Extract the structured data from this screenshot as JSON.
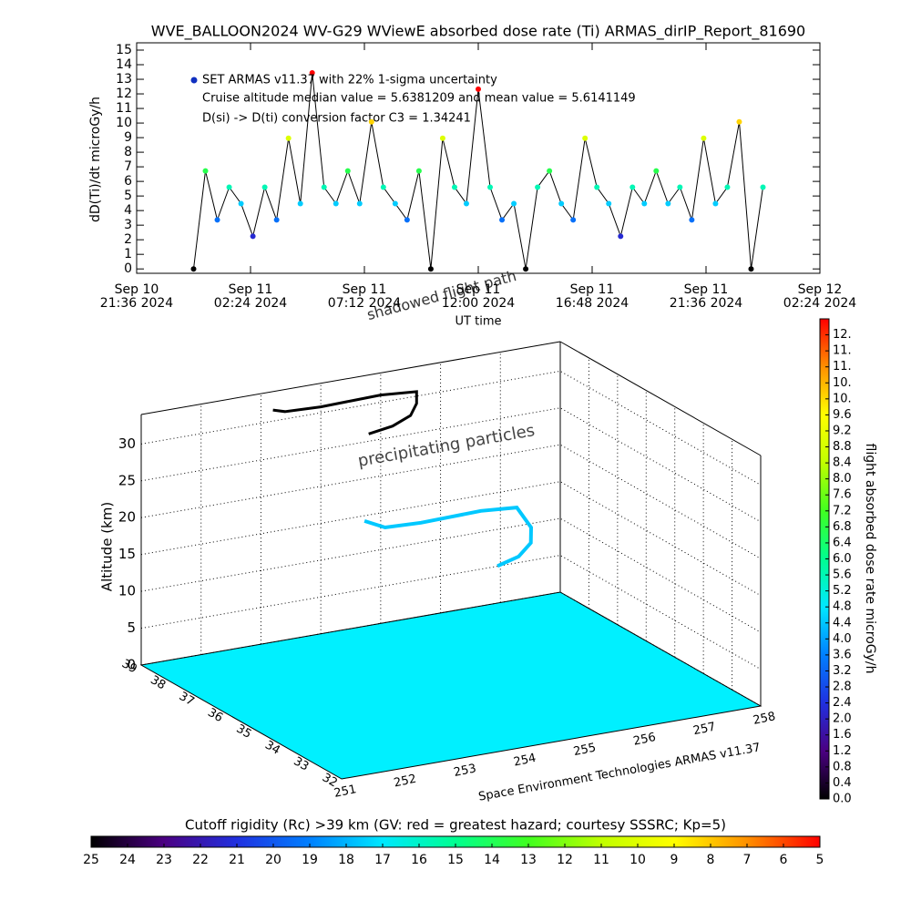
{
  "chart_data": [
    {
      "type": "line",
      "title": "WVE_BALLOON2024 WV-G29 WViewE absorbed dose rate (Ti) ARMAS_dirIP_Report_81690",
      "ylabel": "dD(Ti)/dt microGy/h",
      "xlabel": "UT time",
      "annotations": [
        "Cruise altitude median value = 5.6381209 and mean value = 5.6141149",
        "D(si) -> D(ti) conversion factor C3 = 1.34241"
      ],
      "legend": "top-left",
      "xlim": [
        "2024-09-10 21:36",
        "2024-09-12 02:24"
      ],
      "xticks": [
        {
          "value": "2024-09-10 21:36",
          "label": [
            "Sep 10",
            "21:36 2024"
          ]
        },
        {
          "value": "2024-09-11 02:24",
          "label": [
            "Sep 11",
            "02:24 2024"
          ]
        },
        {
          "value": "2024-09-11 07:12",
          "label": [
            "Sep 11",
            "07:12 2024"
          ]
        },
        {
          "value": "2024-09-11 12:00",
          "label": [
            "Sep 11",
            "12:00 2024"
          ]
        },
        {
          "value": "2024-09-11 16:48",
          "label": [
            "Sep 11",
            "16:48 2024"
          ]
        },
        {
          "value": "2024-09-11 21:36",
          "label": [
            "Sep 11",
            "21:36 2024"
          ]
        },
        {
          "value": "2024-09-12 02:24",
          "label": [
            "Sep 12",
            "02:24 2024"
          ]
        }
      ],
      "ylim": [
        -0.3,
        15.5
      ],
      "yticks": [
        0,
        1,
        2,
        3,
        4,
        5,
        6,
        7,
        8,
        9,
        10,
        11,
        12,
        13,
        14,
        15
      ],
      "x": [
        "2024-09-11 00:00",
        "2024-09-11 00:30",
        "2024-09-11 01:00",
        "2024-09-11 01:30",
        "2024-09-11 02:00",
        "2024-09-11 02:30",
        "2024-09-11 03:00",
        "2024-09-11 03:30",
        "2024-09-11 04:00",
        "2024-09-11 04:30",
        "2024-09-11 05:00",
        "2024-09-11 05:30",
        "2024-09-11 06:00",
        "2024-09-11 06:30",
        "2024-09-11 07:00",
        "2024-09-11 07:30",
        "2024-09-11 08:00",
        "2024-09-11 08:30",
        "2024-09-11 09:00",
        "2024-09-11 09:30",
        "2024-09-11 10:00",
        "2024-09-11 10:30",
        "2024-09-11 11:00",
        "2024-09-11 11:30",
        "2024-09-11 12:00",
        "2024-09-11 12:30",
        "2024-09-11 13:00",
        "2024-09-11 13:30",
        "2024-09-11 14:00",
        "2024-09-11 14:30",
        "2024-09-11 15:00",
        "2024-09-11 15:30",
        "2024-09-11 16:00",
        "2024-09-11 16:30",
        "2024-09-11 17:00",
        "2024-09-11 17:30",
        "2024-09-11 18:00",
        "2024-09-11 18:30",
        "2024-09-11 19:00",
        "2024-09-11 19:30",
        "2024-09-11 20:00",
        "2024-09-11 20:30",
        "2024-09-11 21:00",
        "2024-09-11 21:30",
        "2024-09-11 22:00",
        "2024-09-11 22:30",
        "2024-09-11 23:00",
        "2024-09-11 23:30",
        "2024-09-12 00:00"
      ],
      "series": [
        {
          "name": "SET ARMAS v11.37 with 22% 1-sigma uncertainty",
          "color": "#1030c0",
          "values": [
            0,
            6.72,
            3.36,
            5.6,
            4.48,
            2.24,
            5.6,
            3.36,
            8.96,
            4.48,
            13.44,
            5.6,
            4.48,
            6.72,
            4.48,
            10.08,
            5.6,
            4.48,
            3.36,
            6.72,
            0,
            8.96,
            5.6,
            4.48,
            12.32,
            5.6,
            3.36,
            4.48,
            0,
            5.6,
            6.72,
            4.48,
            3.36,
            8.96,
            5.6,
            4.48,
            2.24,
            5.6,
            4.48,
            6.72,
            4.48,
            5.6,
            3.36,
            8.96,
            4.48,
            5.6,
            10.08,
            0,
            5.6
          ]
        }
      ]
    },
    {
      "type": "path3d",
      "zlabel": "Altitude (km)",
      "caption": "Space Environment Technologies ARMAS v11.37",
      "annotations": [
        "precipitating particles",
        "shadowed flight path"
      ],
      "xlim": [
        251,
        258
      ],
      "xticks": [
        251,
        252,
        253,
        254,
        255,
        256,
        257,
        258
      ],
      "ylim": [
        32,
        39
      ],
      "yticks": [
        32,
        33,
        34,
        35,
        36,
        37,
        38,
        39
      ],
      "zlim": [
        0,
        34
      ],
      "zticks": [
        0,
        5,
        10,
        15,
        20,
        25,
        30
      ],
      "floor_color": "#00f0ff",
      "color": "#00c8ff",
      "shadow_color": "#000000",
      "x": [
        253.2,
        253.4,
        254.0,
        254.5,
        255.0,
        255.6,
        255.6,
        255.5,
        255.2,
        254.8
      ],
      "y": [
        35.8,
        35.5,
        35.5,
        35.5,
        35.5,
        35.5,
        35.0,
        34.8,
        34.6,
        34.5
      ],
      "z": [
        23.5,
        23.0,
        22.8,
        22.9,
        23.0,
        22.6,
        21.0,
        19.5,
        18.5,
        18.0
      ],
      "colorbar": {
        "label": "flight absorbed dose rate microGy/h",
        "lim": [
          0,
          12
        ],
        "colors": [
          "#000000",
          "#4b0082",
          "#2030e0",
          "#0080ff",
          "#00e8ff",
          "#00ff90",
          "#40ff20",
          "#c0ff00",
          "#ffff00",
          "#ff9000",
          "#ff0000"
        ],
        "ticks": [
          {
            "value": 0,
            "label": "0.0"
          },
          0.4,
          0.8,
          1.2,
          1.6,
          {
            "value": 2,
            "label": "2.0"
          },
          2.4,
          2.8,
          3.2,
          3.6,
          {
            "value": 4,
            "label": "4.0"
          },
          4.4,
          4.8,
          5.2,
          5.6,
          {
            "value": 6,
            "label": "6.0"
          },
          6.4,
          6.8,
          7.2,
          7.6,
          {
            "value": 8,
            "label": "8.0"
          },
          8.4,
          8.8,
          9.2,
          9.6,
          {
            "value": 10,
            "label": "10."
          },
          {
            "value": 10.4,
            "label": "10."
          },
          {
            "value": 10.8,
            "label": "11."
          },
          {
            "value": 11.2,
            "label": "11."
          },
          {
            "value": 11.6,
            "label": "12."
          }
        ]
      },
      "rc_colorbar": {
        "label": "Cutoff rigidity (Rc) >39 km (GV: red = greatest hazard; courtesy SSSRC; Kp=5)",
        "lim": [
          25,
          5
        ],
        "colors": [
          "#000000",
          "#4b0082",
          "#2030e0",
          "#0080ff",
          "#00e8ff",
          "#00ff90",
          "#40ff20",
          "#c0ff00",
          "#ffff00",
          "#ff9000",
          "#ff0000"
        ],
        "ticks": [
          25,
          24,
          23,
          22,
          21,
          20,
          19,
          18,
          17,
          16,
          15,
          14,
          13,
          12,
          11,
          10,
          9,
          8,
          7,
          6,
          5
        ]
      }
    }
  ]
}
